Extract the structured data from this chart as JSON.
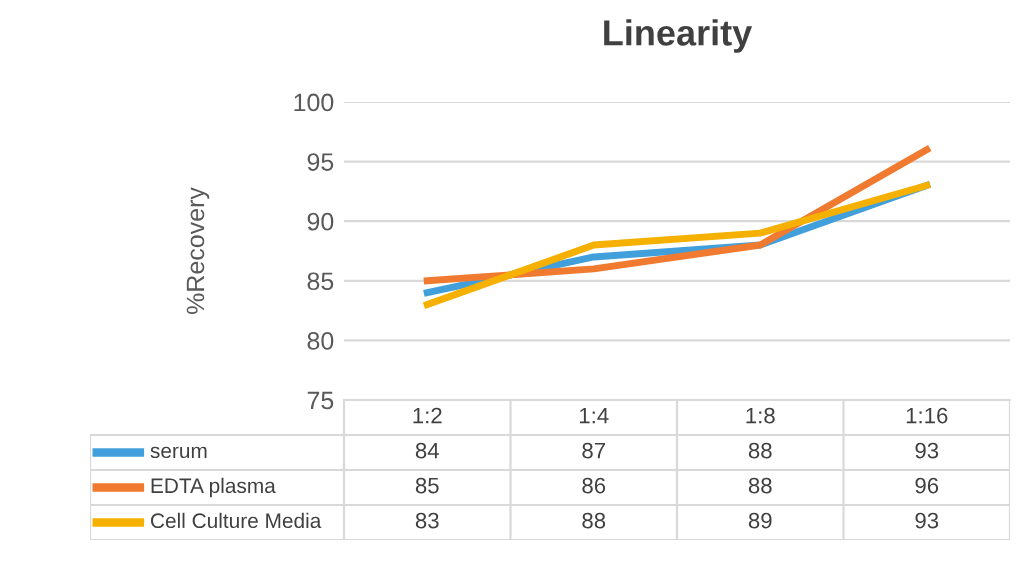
{
  "chart_data": {
    "type": "line",
    "title": "Linearity",
    "ylabel": "%Recovery",
    "categories": [
      "1:2",
      "1:4",
      "1:8",
      "1:16"
    ],
    "series": [
      {
        "name": "serum",
        "color": "#41a0dc",
        "values": [
          84,
          87,
          88,
          93
        ]
      },
      {
        "name": "EDTA plasma",
        "color": "#f07a30",
        "values": [
          85,
          86,
          88,
          96
        ]
      },
      {
        "name": "Cell Culture Media",
        "color": "#f5b000",
        "values": [
          83,
          88,
          89,
          93
        ]
      }
    ],
    "ylim": [
      75,
      100
    ],
    "yticks": [
      75,
      80,
      85,
      90,
      95,
      100
    ],
    "grid": "y",
    "legend": "bottom",
    "data_labels": true,
    "marker": "none",
    "line_style": "solid"
  }
}
